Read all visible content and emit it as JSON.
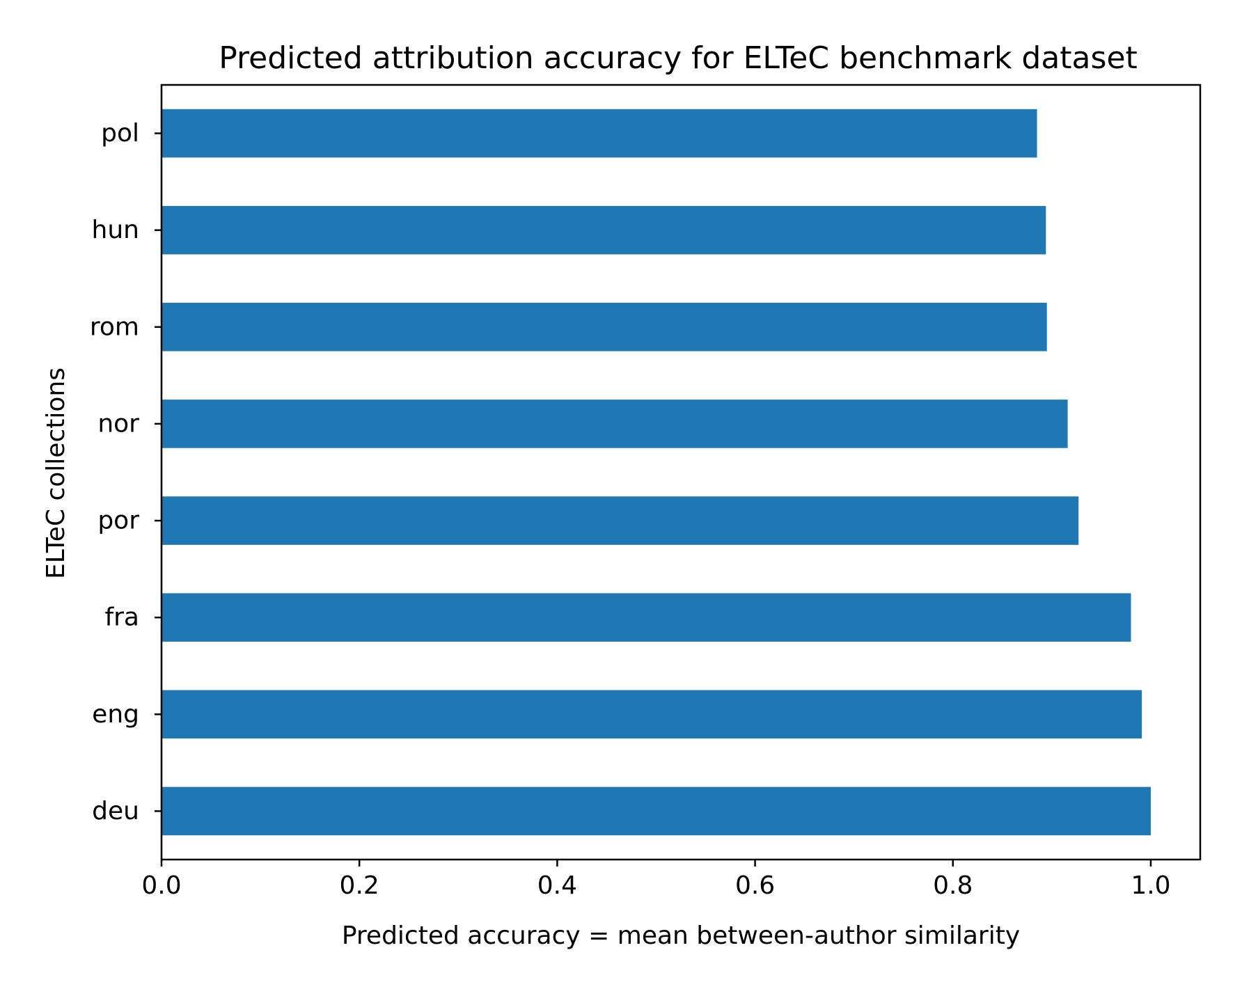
{
  "chart_data": {
    "type": "bar",
    "orientation": "horizontal",
    "title": "Predicted attribution accuracy for ELTeC benchmark dataset",
    "xlabel": "Predicted accuracy = mean between-author similarity",
    "ylabel": "ELTeC collections",
    "categories": [
      "deu",
      "eng",
      "fra",
      "por",
      "nor",
      "rom",
      "hun",
      "pol"
    ],
    "values": [
      1.0,
      0.991,
      0.98,
      0.927,
      0.916,
      0.895,
      0.894,
      0.885
    ],
    "xlim": [
      0,
      1.05
    ],
    "xticks": [
      0.0,
      0.2,
      0.4,
      0.6,
      0.8,
      1.0
    ],
    "xtick_labels": [
      "0.0",
      "0.2",
      "0.4",
      "0.6",
      "0.8",
      "1.0"
    ],
    "bar_color": "#1f77b4",
    "grid": false,
    "legend": "none"
  }
}
